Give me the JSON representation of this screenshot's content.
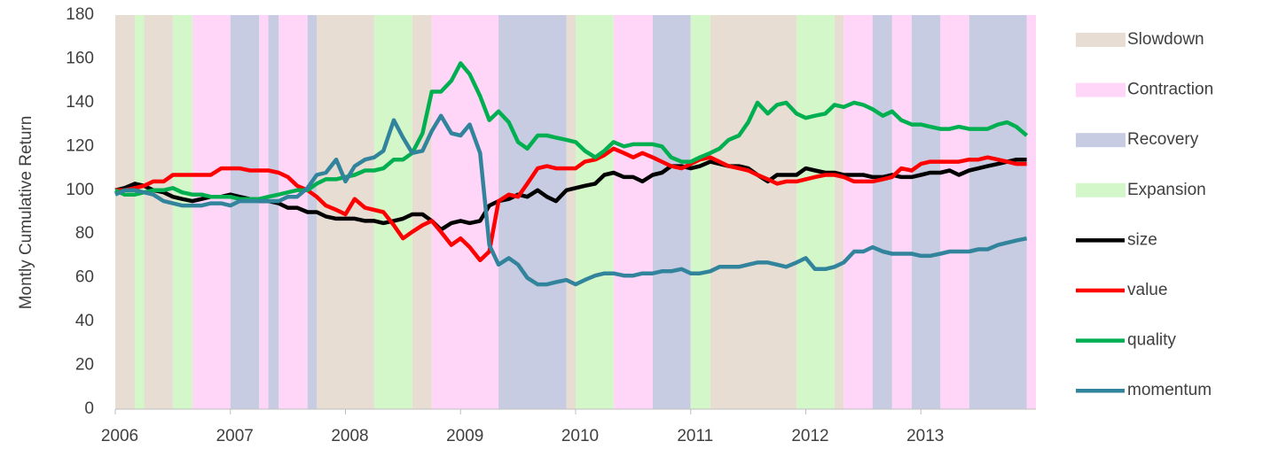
{
  "chart_data": {
    "type": "line",
    "y_label": "Montly Cumulative Return",
    "xlim": [
      2006,
      2014
    ],
    "xticks": [
      2006,
      2007,
      2008,
      2009,
      2010,
      2011,
      2012,
      2013
    ],
    "ylim": [
      0,
      180
    ],
    "yticks": [
      0,
      20,
      40,
      60,
      80,
      100,
      120,
      140,
      160,
      180
    ],
    "x": [
      2006,
      2006.08,
      2006.17,
      2006.25,
      2006.33,
      2006.42,
      2006.5,
      2006.58,
      2006.67,
      2006.75,
      2006.83,
      2006.92,
      2007,
      2007.08,
      2007.17,
      2007.25,
      2007.33,
      2007.42,
      2007.5,
      2007.58,
      2007.67,
      2007.75,
      2007.83,
      2007.92,
      2008,
      2008.08,
      2008.17,
      2008.25,
      2008.33,
      2008.42,
      2008.5,
      2008.58,
      2008.67,
      2008.75,
      2008.83,
      2008.92,
      2009,
      2009.08,
      2009.17,
      2009.25,
      2009.33,
      2009.42,
      2009.5,
      2009.58,
      2009.67,
      2009.75,
      2009.83,
      2009.92,
      2010,
      2010.08,
      2010.17,
      2010.25,
      2010.33,
      2010.42,
      2010.5,
      2010.58,
      2010.67,
      2010.75,
      2010.83,
      2010.92,
      2011,
      2011.08,
      2011.17,
      2011.25,
      2011.33,
      2011.42,
      2011.5,
      2011.58,
      2011.67,
      2011.75,
      2011.83,
      2011.92,
      2012,
      2012.08,
      2012.17,
      2012.25,
      2012.33,
      2012.42,
      2012.5,
      2012.58,
      2012.67,
      2012.75,
      2012.83,
      2012.92,
      2013,
      2013.08,
      2013.17,
      2013.25,
      2013.33,
      2013.42,
      2013.5,
      2013.58,
      2013.67,
      2013.75,
      2013.83,
      2013.92
    ],
    "bands": [
      {
        "name": "Slowdown",
        "color": "#e8ddd3",
        "periods": [
          [
            2006,
            2006.17
          ],
          [
            2006.25,
            2006.5
          ],
          [
            2007.75,
            2008.25
          ],
          [
            2008.58,
            2008.75
          ],
          [
            2009.92,
            2010
          ],
          [
            2011.17,
            2011.92
          ],
          [
            2012.25,
            2012.33
          ]
        ]
      },
      {
        "name": "Contraction",
        "color": "#ffd6f7",
        "periods": [
          [
            2006.67,
            2007
          ],
          [
            2007.25,
            2007.33
          ],
          [
            2007.42,
            2007.67
          ],
          [
            2008.75,
            2009.33
          ],
          [
            2010.33,
            2010.67
          ],
          [
            2012.33,
            2012.58
          ],
          [
            2012.75,
            2012.92
          ],
          [
            2013.17,
            2013.42
          ],
          [
            2013.92,
            2014
          ]
        ]
      },
      {
        "name": "Recovery",
        "color": "#c8cce3",
        "periods": [
          [
            2007,
            2007.25
          ],
          [
            2007.33,
            2007.42
          ],
          [
            2007.67,
            2007.75
          ],
          [
            2009.33,
            2009.92
          ],
          [
            2010.67,
            2011
          ],
          [
            2012.58,
            2012.75
          ],
          [
            2012.92,
            2013.17
          ],
          [
            2013.42,
            2013.92
          ]
        ]
      },
      {
        "name": "Expansion",
        "color": "#d4f7c9",
        "periods": [
          [
            2006.17,
            2006.25
          ],
          [
            2006.5,
            2006.67
          ],
          [
            2008.25,
            2008.58
          ],
          [
            2010,
            2010.33
          ],
          [
            2011,
            2011.17
          ],
          [
            2011.92,
            2012.25
          ]
        ]
      }
    ],
    "series": [
      {
        "name": "size",
        "color": "#000000",
        "values": [
          100,
          101,
          103,
          102,
          100,
          99,
          97,
          96,
          95,
          96,
          97,
          97,
          98,
          97,
          96,
          95,
          95,
          94,
          92,
          92,
          90,
          90,
          88,
          87,
          87,
          87,
          86,
          86,
          85,
          86,
          87,
          89,
          89,
          86,
          82,
          85,
          86,
          85,
          86,
          93,
          95,
          96,
          98,
          97,
          100,
          97,
          95,
          100,
          101,
          102,
          103,
          107,
          108,
          106,
          106,
          104,
          107,
          108,
          111,
          111,
          110,
          111,
          113,
          112,
          111,
          111,
          110,
          107,
          104,
          107,
          107,
          107,
          110,
          109,
          108,
          108,
          107,
          107,
          107,
          106,
          106,
          107,
          106,
          106,
          107,
          108,
          108,
          109,
          107,
          109,
          110,
          111,
          112,
          113,
          114,
          114
        ]
      },
      {
        "name": "value",
        "color": "#ff0000",
        "values": [
          100,
          100,
          101,
          102,
          104,
          104,
          107,
          107,
          107,
          107,
          107,
          110,
          110,
          110,
          109,
          109,
          109,
          108,
          106,
          102,
          100,
          97,
          93,
          91,
          89,
          96,
          92,
          91,
          90,
          84,
          78,
          81,
          84,
          86,
          81,
          75,
          78,
          74,
          68,
          72,
          95,
          98,
          97,
          103,
          110,
          111,
          110,
          110,
          110,
          113,
          114,
          116,
          119,
          117,
          115,
          117,
          115,
          113,
          111,
          110,
          112,
          114,
          115,
          113,
          111,
          110,
          109,
          107,
          105,
          103,
          104,
          104,
          105,
          106,
          107,
          107,
          106,
          104,
          104,
          104,
          105,
          106,
          110,
          109,
          112,
          113,
          113,
          113,
          113,
          114,
          114,
          115,
          114,
          113,
          112,
          112
        ]
      },
      {
        "name": "quality",
        "color": "#00b050",
        "values": [
          100,
          98,
          98,
          99,
          100,
          100,
          101,
          99,
          98,
          98,
          97,
          97,
          97,
          96,
          96,
          96,
          97,
          98,
          99,
          100,
          100,
          103,
          105,
          105,
          106,
          107,
          109,
          109,
          110,
          114,
          114,
          117,
          126,
          145,
          145,
          150,
          158,
          153,
          143,
          132,
          136,
          131,
          122,
          119,
          125,
          125,
          124,
          123,
          122,
          118,
          115,
          118,
          122,
          120,
          121,
          121,
          121,
          120,
          115,
          113,
          113,
          115,
          117,
          119,
          123,
          125,
          131,
          140,
          135,
          139,
          140,
          135,
          133,
          134,
          135,
          139,
          138,
          140,
          139,
          137,
          134,
          136,
          132,
          130,
          130,
          129,
          128,
          128,
          129,
          128,
          128,
          128,
          130,
          131,
          129,
          125
        ]
      },
      {
        "name": "momentum",
        "color": "#31849b",
        "values": [
          98,
          100,
          100,
          99,
          98,
          95,
          94,
          93,
          93,
          93,
          94,
          94,
          93,
          95,
          95,
          95,
          95,
          95,
          97,
          97,
          101,
          107,
          108,
          114,
          104,
          111,
          114,
          115,
          118,
          132,
          124,
          117,
          118,
          127,
          134,
          126,
          125,
          130,
          117,
          75,
          66,
          69,
          66,
          60,
          57,
          57,
          58,
          59,
          57,
          59,
          61,
          62,
          62,
          61,
          61,
          62,
          62,
          63,
          63,
          64,
          62,
          62,
          63,
          65,
          65,
          65,
          66,
          67,
          67,
          66,
          65,
          67,
          69,
          64,
          64,
          65,
          67,
          72,
          72,
          74,
          72,
          71,
          71,
          71,
          70,
          70,
          71,
          72,
          72,
          72,
          73,
          73,
          75,
          76,
          77,
          78
        ]
      }
    ]
  }
}
